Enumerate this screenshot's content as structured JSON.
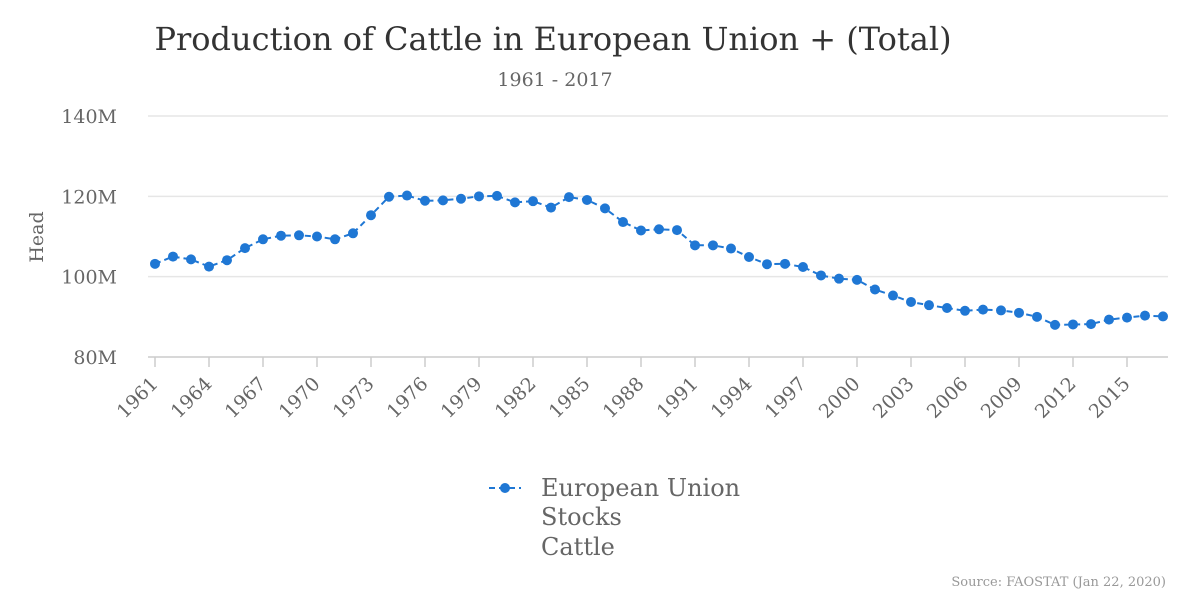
{
  "chart_data": {
    "type": "line",
    "title": "Production of Cattle in European Union + (Total)",
    "subtitle": "1961 - 2017",
    "xlabel": "",
    "ylabel": "Head",
    "ylim": [
      80000000,
      140000000
    ],
    "yticks": [
      {
        "value": 80000000,
        "label": "80M"
      },
      {
        "value": 100000000,
        "label": "100M"
      },
      {
        "value": 120000000,
        "label": "120M"
      },
      {
        "value": 140000000,
        "label": "140M"
      }
    ],
    "xtick_labels": [
      "1961",
      "1964",
      "1967",
      "1970",
      "1973",
      "1976",
      "1979",
      "1982",
      "1985",
      "1988",
      "1991",
      "1994",
      "1997",
      "2000",
      "2003",
      "2006",
      "2009",
      "2012",
      "2015"
    ],
    "x": [
      1961,
      1962,
      1963,
      1964,
      1965,
      1966,
      1967,
      1968,
      1969,
      1970,
      1971,
      1972,
      1973,
      1974,
      1975,
      1976,
      1977,
      1978,
      1979,
      1980,
      1981,
      1982,
      1983,
      1984,
      1985,
      1986,
      1987,
      1988,
      1989,
      1990,
      1991,
      1992,
      1993,
      1994,
      1995,
      1996,
      1997,
      1998,
      1999,
      2000,
      2001,
      2002,
      2003,
      2004,
      2005,
      2006,
      2007,
      2008,
      2009,
      2010,
      2011,
      2012,
      2013,
      2014,
      2015,
      2016,
      2017
    ],
    "series": [
      {
        "name": "European Union Stocks Cattle",
        "color": "#1f77d4",
        "values": [
          103.2,
          105.0,
          104.3,
          102.5,
          104.1,
          107.1,
          109.3,
          110.2,
          110.3,
          110.0,
          109.3,
          110.8,
          115.3,
          119.9,
          120.2,
          118.9,
          119.0,
          119.4,
          120.0,
          120.1,
          118.5,
          118.8,
          117.2,
          119.8,
          119.1,
          117.0,
          113.6,
          111.5,
          111.8,
          111.6,
          107.8,
          107.8,
          107.0,
          104.9,
          103.1,
          103.2,
          102.4,
          100.3,
          99.5,
          99.2,
          96.8,
          95.3,
          93.7,
          92.9,
          92.2,
          91.5,
          91.8,
          91.6,
          91.0,
          90.0,
          88.0,
          88.1,
          88.2,
          89.3,
          89.8,
          90.3,
          90.1
        ]
      }
    ],
    "legend": {
      "position": "bottom-center",
      "lines": [
        "European Union",
        "Stocks",
        "Cattle"
      ]
    },
    "source": "Source: FAOSTAT (Jan 22, 2020)"
  }
}
